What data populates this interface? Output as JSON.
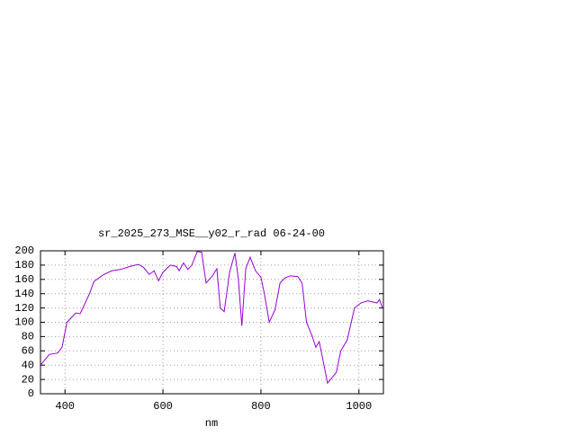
{
  "chart_data": {
    "type": "line",
    "title": "sr_2025_273_MSE__y02_r_rad 06-24-00",
    "x_label": "nm",
    "xlim": [
      350,
      1050
    ],
    "xticks": [
      400,
      600,
      800,
      1000
    ],
    "ylim": [
      0,
      200
    ],
    "yticks": [
      0,
      20,
      40,
      60,
      80,
      100,
      120,
      140,
      160,
      180,
      200
    ],
    "grid": true,
    "series": [
      {
        "color": "#9400d3",
        "x": [
          350,
          368,
          385,
          394,
          404,
          422,
          431,
          450,
          459,
          477,
          495,
          514,
          532,
          550,
          560,
          572,
          582,
          591,
          600,
          615,
          628,
          633,
          642,
          651,
          659,
          670,
          679,
          688,
          701,
          710,
          717,
          725,
          736,
          747,
          754,
          761,
          769,
          778,
          789,
          800,
          807,
          817,
          829,
          839,
          849,
          860,
          875,
          884,
          893,
          905,
          912,
          919,
          936,
          954,
          963,
          976,
          991,
          1004,
          1018,
          1037,
          1042,
          1048
        ],
        "values": [
          40,
          55,
          57,
          65,
          100,
          113,
          112,
          140,
          157,
          166,
          172,
          174,
          178,
          181,
          177,
          167,
          172,
          158,
          170,
          180,
          178,
          172,
          183,
          174,
          180,
          199,
          198,
          155,
          165,
          175,
          120,
          115,
          170,
          197,
          160,
          95,
          175,
          191,
          172,
          163,
          140,
          100,
          118,
          155,
          162,
          165,
          164,
          155,
          100,
          80,
          65,
          73,
          15,
          30,
          60,
          75,
          120,
          127,
          130,
          127,
          132,
          120
        ]
      }
    ]
  }
}
